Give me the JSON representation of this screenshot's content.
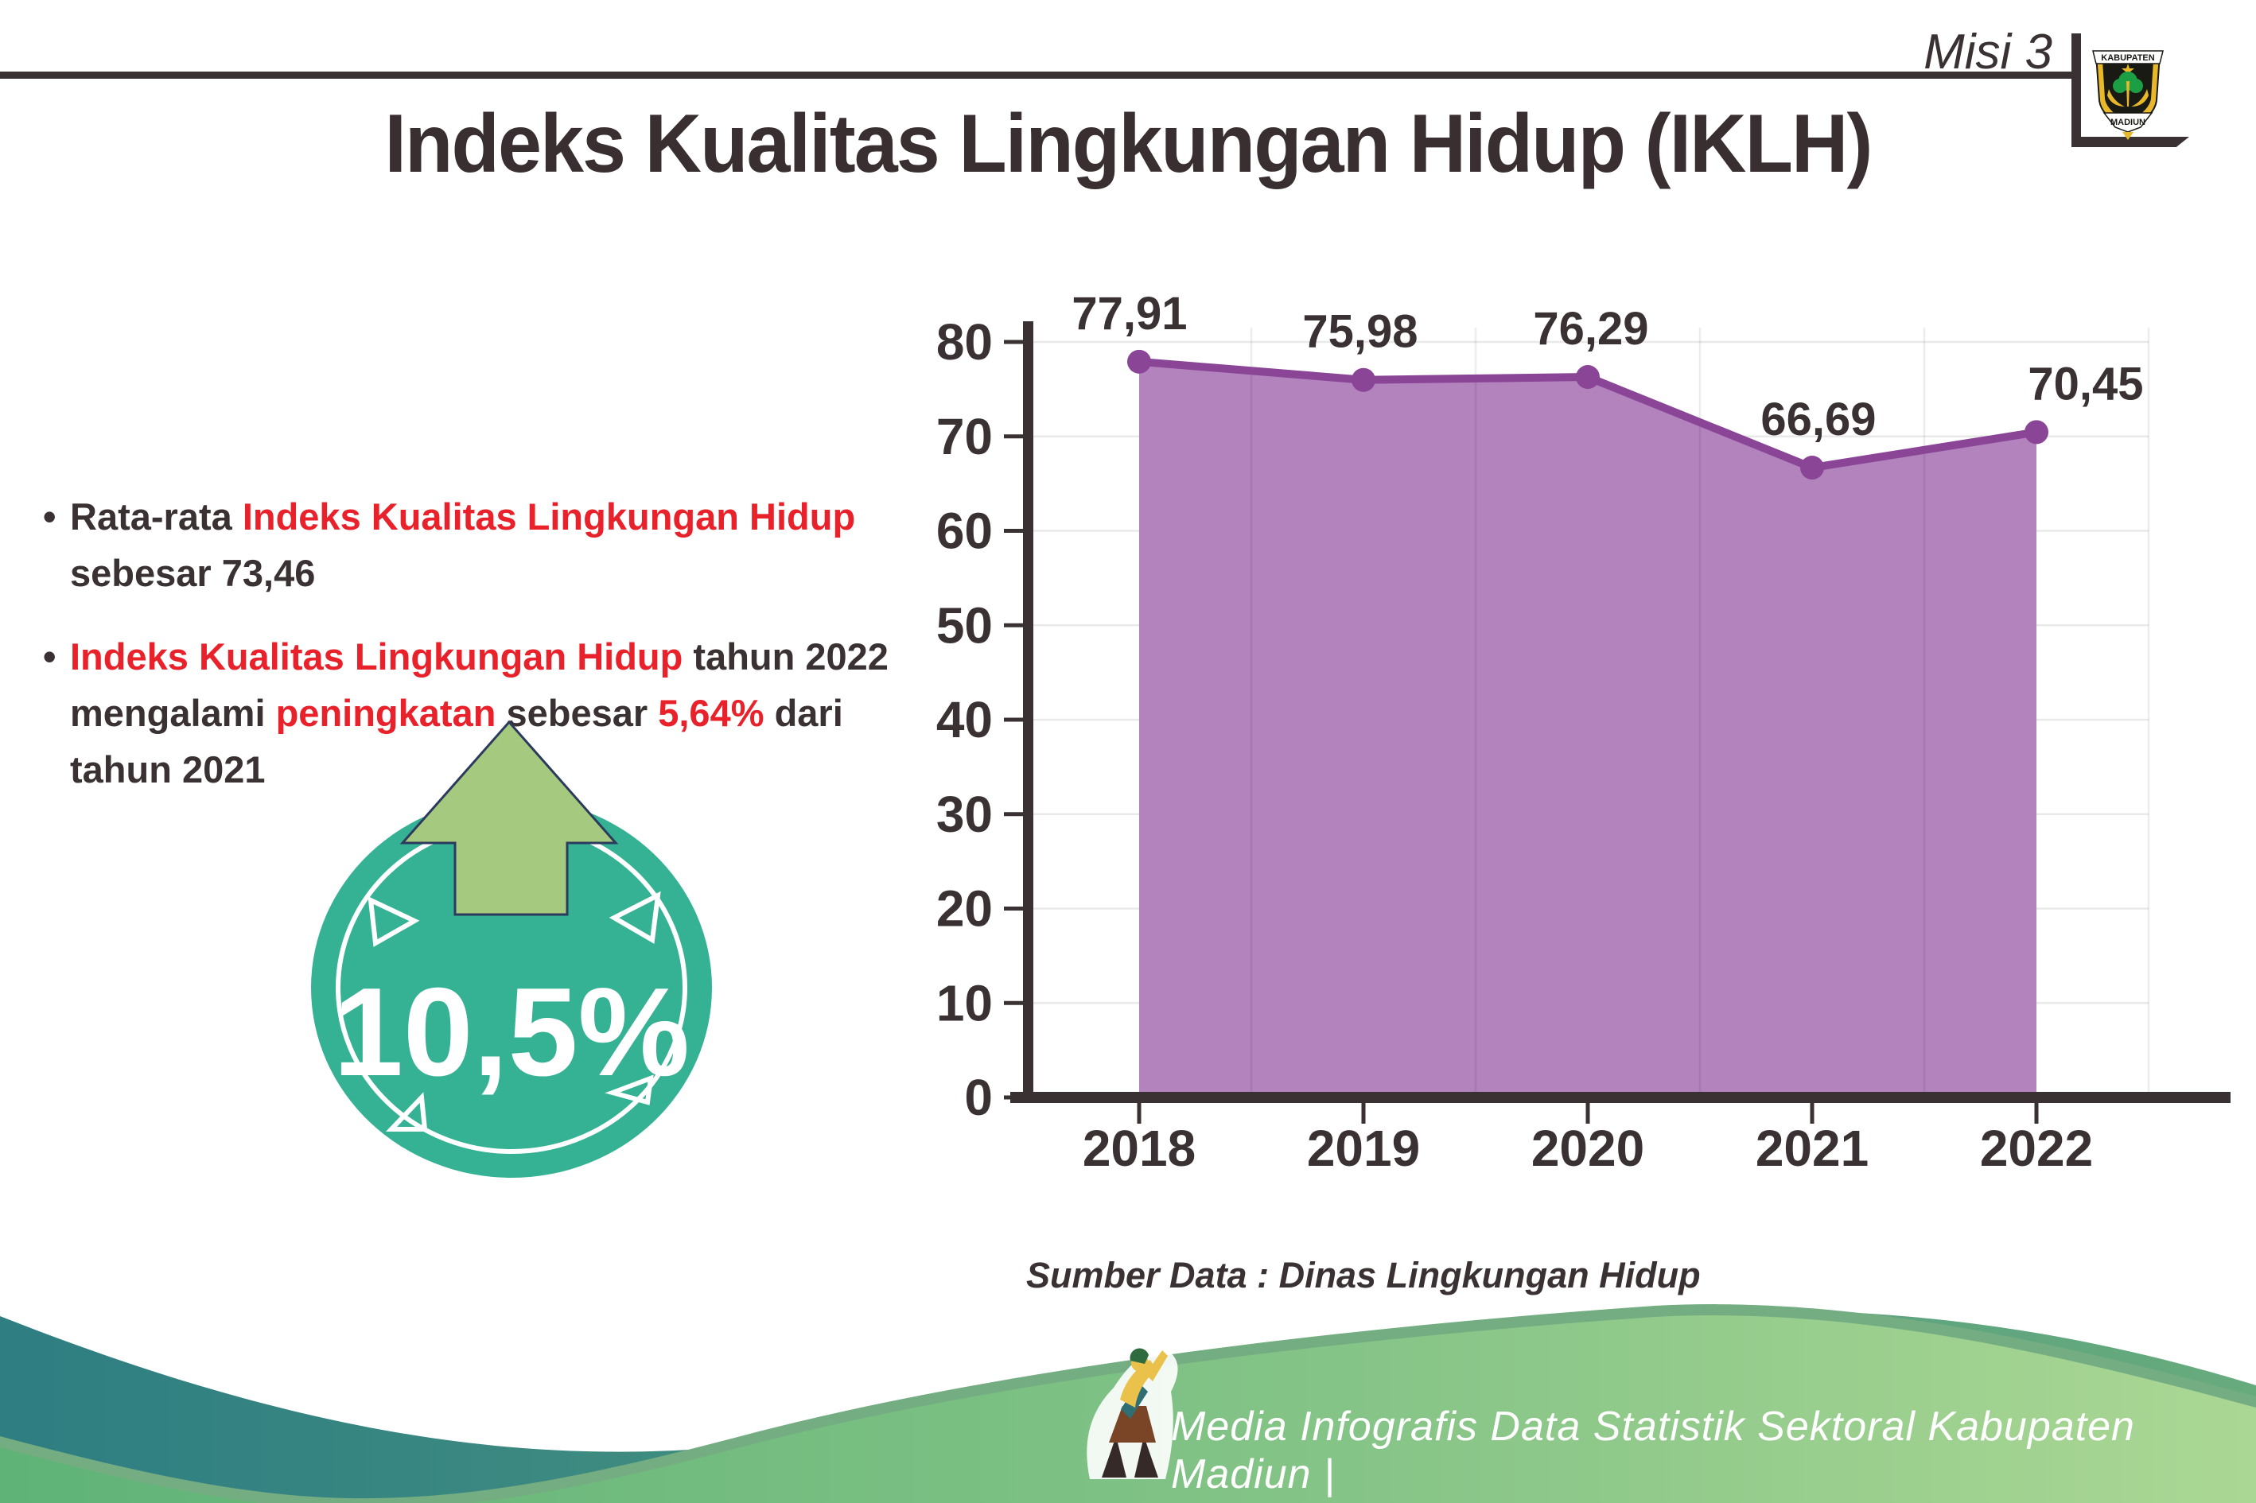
{
  "header": {
    "misi": "Misi 3",
    "logo_top": "KABUPATEN",
    "logo_bottom": "MADIUN"
  },
  "title": "Indeks Kualitas Lingkungan Hidup (IKLH)",
  "bullets": {
    "b1": {
      "l1s1": "Rata-rata ",
      "l1s2": "Indeks Kualitas Lingkungan Hidup",
      "l2s1": "sebesar 73,46"
    },
    "b2": {
      "l1s1": "Indeks Kualitas Lingkungan Hidup",
      "l1s2": " tahun 2022",
      "l2s1": "mengalami ",
      "l2s2": "peningkatan",
      "l2s3": " sebesar ",
      "l2s4": "5,64%",
      "l2s5": " dari",
      "l3s1": "tahun 2021"
    }
  },
  "badge": {
    "value": "10,5%"
  },
  "chart_data": {
    "type": "area",
    "categories": [
      "2018",
      "2019",
      "2020",
      "2021",
      "2022"
    ],
    "values": [
      77.91,
      75.98,
      76.29,
      66.69,
      70.45
    ],
    "point_labels": [
      "77,91",
      "75,98",
      "76,29",
      "66,69",
      "70,45"
    ],
    "yticks": [
      0,
      10,
      20,
      30,
      40,
      50,
      60,
      70,
      80
    ],
    "ylim": [
      0,
      85
    ],
    "grid": true,
    "legend_position": "none",
    "title": "",
    "xlabel": "",
    "ylabel": "",
    "line_color": "#8a4597",
    "fill_color": "#b283bd",
    "source_note": "Sumber Data : Dinas Lingkungan Hidup"
  },
  "footer": {
    "credit": "Media Infografis Data Statistik Sektoral Kabupaten Madiun |"
  },
  "colors": {
    "text_dark": "#3a3132",
    "accent_red": "#e8212a",
    "badge_teal": "#35b294",
    "arrow_green": "#a5c97e",
    "footer_teal": "#2e7e82",
    "footer_green": "#6ab77c",
    "footer_green_light": "#abd794"
  }
}
